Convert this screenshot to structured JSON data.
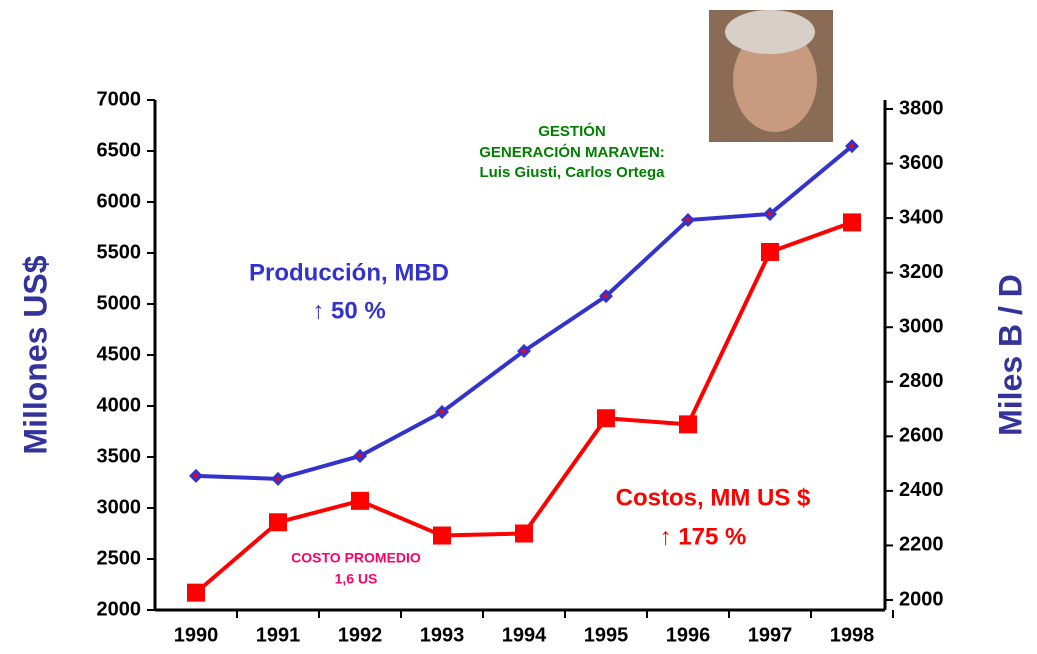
{
  "chart_data": {
    "type": "line",
    "categories": [
      "1990",
      "1991",
      "1992",
      "1993",
      "1994",
      "1995",
      "1996",
      "1997",
      "1998"
    ],
    "series": [
      {
        "name": "Costos, MM US $",
        "color": "#ff0000",
        "axis": "y",
        "values": [
          2170,
          2860,
          3070,
          2730,
          2750,
          3880,
          3820,
          5510,
          5800
        ]
      },
      {
        "name": "Producción, MBD",
        "color": "#3333cc",
        "axis": "y2",
        "values": [
          2455,
          2444,
          2528,
          2689,
          2913,
          3114,
          3393,
          3415,
          3664
        ]
      }
    ],
    "ylabel": "Millones US$",
    "y2label": "Miles B / D",
    "ylim": [
      2000,
      7000
    ],
    "yticks": [
      2000,
      2500,
      3000,
      3500,
      4000,
      4500,
      5000,
      5500,
      6000,
      6500,
      7000
    ],
    "y2lim": [
      2000,
      3800
    ],
    "y2ticks": [
      2000,
      2200,
      2400,
      2600,
      2800,
      3000,
      3200,
      3400,
      3600,
      3800
    ],
    "annotations": [
      "↑ 50 %",
      "↑ 175 %",
      "GESTIÓN",
      "GENERACIÓN MARAVEN:",
      "Luis Giusti, Carlos Ortega",
      "COSTO PROMEDIO",
      "1,6 US"
    ]
  }
}
